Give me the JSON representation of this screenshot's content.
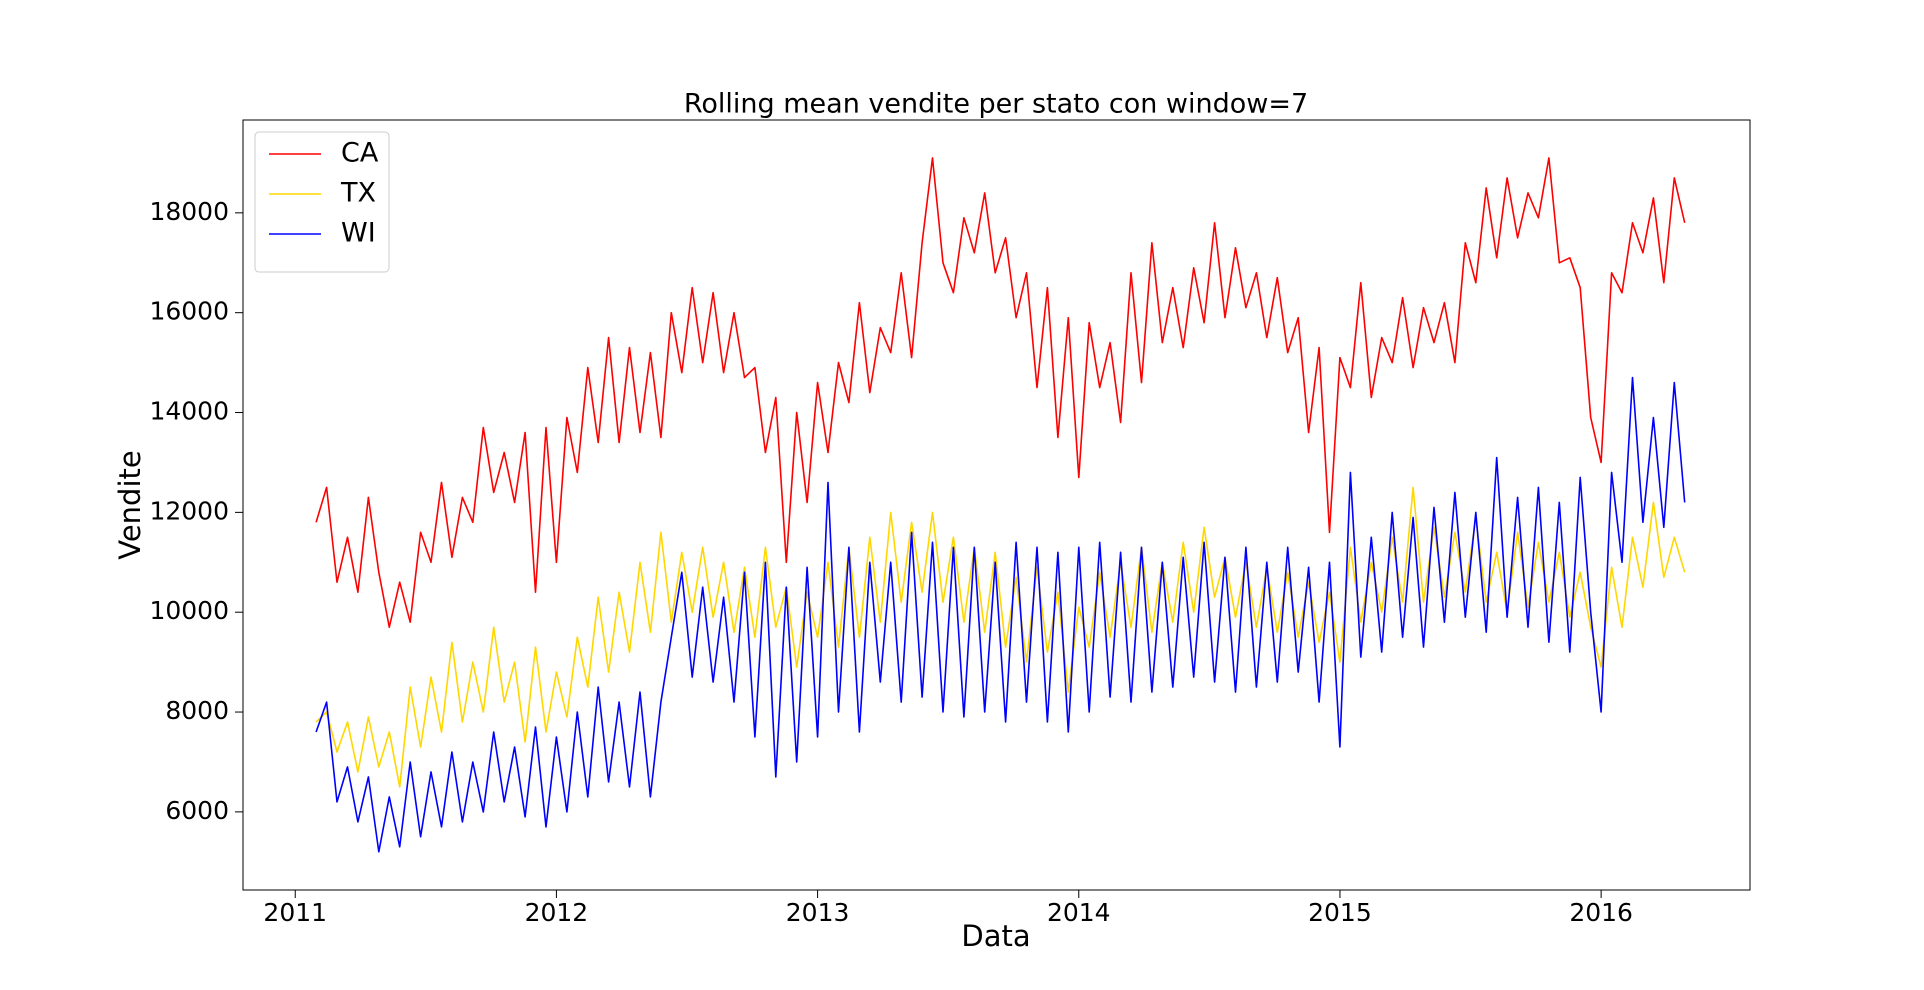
{
  "chart_data": {
    "type": "line",
    "title": "Rolling mean vendite per stato con window=7",
    "x_label": "Data",
    "y_label": "Vendite",
    "xlim": [
      2010.8,
      2016.57
    ],
    "ylim": [
      4435,
      19860
    ],
    "xticks": [
      2011,
      2012,
      2013,
      2014,
      2015,
      2016
    ],
    "yticks": [
      6000,
      8000,
      10000,
      12000,
      14000,
      16000,
      18000
    ],
    "legend": "upper left",
    "x": [
      2011.08,
      2011.12,
      2011.16,
      2011.2,
      2011.24,
      2011.28,
      2011.32,
      2011.36,
      2011.4,
      2011.44,
      2011.48,
      2011.52,
      2011.56,
      2011.6,
      2011.64,
      2011.68,
      2011.72,
      2011.76,
      2011.8,
      2011.84,
      2011.88,
      2011.92,
      2011.96,
      2012.0,
      2012.04,
      2012.08,
      2012.12,
      2012.16,
      2012.2,
      2012.24,
      2012.28,
      2012.32,
      2012.36,
      2012.4,
      2012.44,
      2012.48,
      2012.52,
      2012.56,
      2012.6,
      2012.64,
      2012.68,
      2012.72,
      2012.76,
      2012.8,
      2012.84,
      2012.88,
      2012.92,
      2012.96,
      2013.0,
      2013.04,
      2013.08,
      2013.12,
      2013.16,
      2013.2,
      2013.24,
      2013.28,
      2013.32,
      2013.36,
      2013.4,
      2013.44,
      2013.48,
      2013.52,
      2013.56,
      2013.6,
      2013.64,
      2013.68,
      2013.72,
      2013.76,
      2013.8,
      2013.84,
      2013.88,
      2013.92,
      2013.96,
      2014.0,
      2014.04,
      2014.08,
      2014.12,
      2014.16,
      2014.2,
      2014.24,
      2014.28,
      2014.32,
      2014.36,
      2014.4,
      2014.44,
      2014.48,
      2014.52,
      2014.56,
      2014.6,
      2014.64,
      2014.68,
      2014.72,
      2014.76,
      2014.8,
      2014.84,
      2014.88,
      2014.92,
      2014.96,
      2015.0,
      2015.04,
      2015.08,
      2015.12,
      2015.16,
      2015.2,
      2015.24,
      2015.28,
      2015.32,
      2015.36,
      2015.4,
      2015.44,
      2015.48,
      2015.52,
      2015.56,
      2015.6,
      2015.64,
      2015.68,
      2015.72,
      2015.76,
      2015.8,
      2015.84,
      2015.88,
      2015.92,
      2015.96,
      2016.0,
      2016.04,
      2016.08,
      2016.12,
      2016.16,
      2016.2,
      2016.24,
      2016.28,
      2016.32
    ],
    "series": [
      {
        "name": "CA",
        "color": "#ff0000",
        "values": [
          11800,
          12500,
          10600,
          11500,
          10400,
          12300,
          10800,
          9700,
          10600,
          9800,
          11600,
          11000,
          12600,
          11100,
          12300,
          11800,
          13700,
          12400,
          13200,
          12200,
          13600,
          10400,
          13700,
          11000,
          13900,
          12800,
          14900,
          13400,
          15500,
          13400,
          15300,
          13600,
          15200,
          13500,
          16000,
          14800,
          16500,
          15000,
          16400,
          14800,
          16000,
          14700,
          14900,
          13200,
          14300,
          11000,
          14000,
          12200,
          14600,
          13200,
          15000,
          14200,
          16200,
          14400,
          15700,
          15200,
          16800,
          15100,
          17400,
          19100,
          17000,
          16400,
          17900,
          17200,
          18400,
          16800,
          17500,
          15900,
          16800,
          14500,
          16500,
          13500,
          15900,
          12700,
          15800,
          14500,
          15400,
          13800,
          16800,
          14600,
          17400,
          15400,
          16500,
          15300,
          16900,
          15800,
          17800,
          15900,
          17300,
          16100,
          16800,
          15500,
          16700,
          15200,
          15900,
          13600,
          15300,
          11600,
          15100,
          14500,
          16600,
          14300,
          15500,
          15000,
          16300,
          14900,
          16100,
          15400,
          16200,
          15000,
          17400,
          16600,
          18500,
          17100,
          18700,
          17500,
          18400,
          17900,
          19100,
          17000,
          17100,
          16500,
          13900,
          13000,
          16800,
          16400,
          17800,
          17200,
          18300,
          16600,
          18700,
          17800
        ]
      },
      {
        "name": "TX",
        "color": "#ffd700",
        "values": [
          7800,
          8000,
          7200,
          7800,
          6800,
          7900,
          6900,
          7600,
          6500,
          8500,
          7300,
          8700,
          7600,
          9400,
          7800,
          9000,
          8000,
          9700,
          8200,
          9000,
          7400,
          9300,
          7600,
          8800,
          7900,
          9500,
          8500,
          10300,
          8800,
          10400,
          9200,
          11000,
          9600,
          11600,
          9800,
          11200,
          10000,
          11300,
          9900,
          11000,
          9600,
          10900,
          9500,
          11300,
          9700,
          10500,
          8900,
          10400,
          9500,
          11000,
          9300,
          11300,
          9500,
          11500,
          9800,
          12000,
          10200,
          11800,
          10400,
          12000,
          10200,
          11500,
          9800,
          11300,
          9600,
          11200,
          9300,
          10700,
          9000,
          10900,
          9200,
          10400,
          8400,
          10100,
          9300,
          10800,
          9500,
          11000,
          9700,
          11300,
          9600,
          11000,
          9800,
          11400,
          10000,
          11700,
          10300,
          11100,
          9900,
          11000,
          9700,
          10900,
          9600,
          10800,
          9500,
          10600,
          9400,
          10400,
          9000,
          11300,
          9800,
          11000,
          10000,
          11500,
          10200,
          12500,
          10200,
          11700,
          10300,
          11600,
          10400,
          11900,
          10200,
          11200,
          10000,
          11600,
          10100,
          11400,
          10200,
          11200,
          9900,
          10800,
          9700,
          8900,
          10900,
          9700,
          11500,
          10500,
          12200,
          10700,
          11500,
          10800
        ]
      },
      {
        "name": "WI",
        "color": "#0000ff",
        "values": [
          7600,
          8200,
          6200,
          6900,
          5800,
          6700,
          5200,
          6300,
          5300,
          7000,
          5500,
          6800,
          5700,
          7200,
          5800,
          7000,
          6000,
          7600,
          6200,
          7300,
          5900,
          7700,
          5700,
          7500,
          6000,
          8000,
          6300,
          8500,
          6600,
          8200,
          6500,
          8400,
          6300,
          8200,
          9500,
          10800,
          8700,
          10500,
          8600,
          10300,
          8200,
          10800,
          7500,
          11000,
          6700,
          10500,
          7000,
          10900,
          7500,
          12600,
          8000,
          11300,
          7600,
          11000,
          8600,
          11000,
          8200,
          11600,
          8300,
          11400,
          8000,
          11300,
          7900,
          11300,
          8000,
          11000,
          7800,
          11400,
          8200,
          11300,
          7800,
          11200,
          7600,
          11300,
          8000,
          11400,
          8300,
          11200,
          8200,
          11300,
          8400,
          11000,
          8500,
          11100,
          8700,
          11400,
          8600,
          11100,
          8400,
          11300,
          8500,
          11000,
          8600,
          11300,
          8800,
          10900,
          8200,
          11000,
          7300,
          12800,
          9100,
          11500,
          9200,
          12000,
          9500,
          11900,
          9300,
          12100,
          9800,
          12400,
          9900,
          12000,
          9600,
          13100,
          9900,
          12300,
          9700,
          12500,
          9400,
          12200,
          9200,
          12700,
          10000,
          8000,
          12800,
          11000,
          14700,
          11800,
          13900,
          11700,
          14600,
          12200
        ]
      }
    ]
  }
}
